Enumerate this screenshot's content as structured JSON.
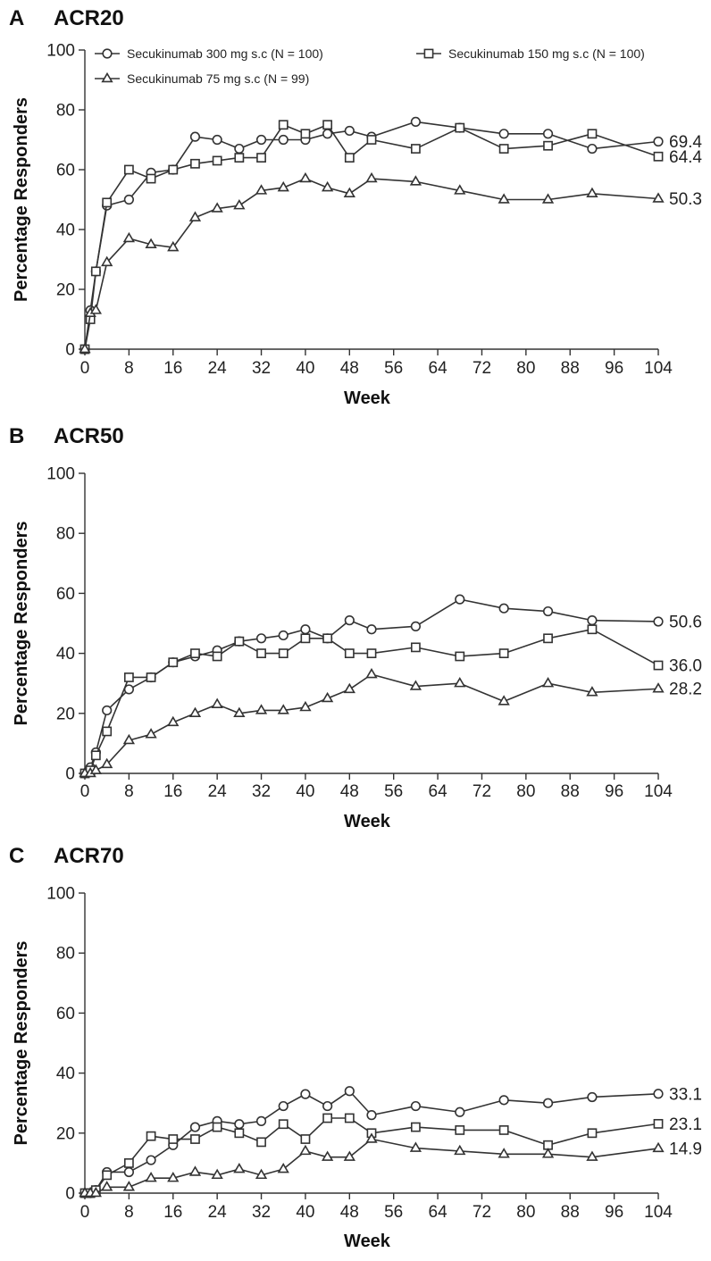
{
  "chart_data": [
    {
      "type": "line",
      "panel": "A",
      "title": "ACR20",
      "xlabel": "Week",
      "ylabel": "Percentage Responders",
      "xlim": [
        0,
        104
      ],
      "ylim": [
        0,
        100
      ],
      "xticks": [
        "0",
        "8",
        "16",
        "24",
        "32",
        "40",
        "48",
        "56",
        "64",
        "72",
        "80",
        "88",
        "96",
        "104"
      ],
      "yticks": [
        "0",
        "20",
        "40",
        "60",
        "80",
        "100"
      ],
      "grid": false,
      "legend": {
        "placement": "top",
        "entries": [
          {
            "label": "Secukinumab 300 mg s.c (N = 100)",
            "marker": "circle"
          },
          {
            "label": "Secukinumab 150 mg s.c (N = 100)",
            "marker": "square"
          },
          {
            "label": "Secukinumab 75 mg s.c (N = 99)",
            "marker": "triangle"
          }
        ]
      },
      "series": [
        {
          "name": "Secukinumab 300 mg s.c (N = 100)",
          "marker": "circle",
          "x": [
            0,
            1,
            2,
            4,
            8,
            12,
            16,
            20,
            24,
            28,
            32,
            36,
            40,
            44,
            48,
            52,
            60,
            68,
            76,
            84,
            92,
            104
          ],
          "y": [
            0,
            13,
            26,
            48,
            50,
            59,
            60,
            71,
            70,
            67,
            70,
            70,
            70,
            72,
            73,
            71,
            76,
            74,
            72,
            72,
            67,
            69.4
          ],
          "end_label": "69.4"
        },
        {
          "name": "Secukinumab 150 mg s.c (N = 100)",
          "marker": "square",
          "x": [
            0,
            1,
            2,
            4,
            8,
            12,
            16,
            20,
            24,
            28,
            32,
            36,
            40,
            44,
            48,
            52,
            60,
            68,
            76,
            84,
            92,
            104
          ],
          "y": [
            0,
            10,
            26,
            49,
            60,
            57,
            60,
            62,
            63,
            64,
            64,
            75,
            72,
            75,
            64,
            70,
            67,
            74,
            67,
            68,
            72,
            64.4
          ],
          "end_label": "64.4"
        },
        {
          "name": "Secukinumab 75 mg s.c (N = 99)",
          "marker": "triangle",
          "x": [
            0,
            1,
            2,
            4,
            8,
            12,
            16,
            20,
            24,
            28,
            32,
            36,
            40,
            44,
            48,
            52,
            60,
            68,
            76,
            84,
            92,
            104
          ],
          "y": [
            0,
            12,
            13,
            29,
            37,
            35,
            34,
            44,
            47,
            48,
            53,
            54,
            57,
            54,
            52,
            57,
            56,
            53,
            50,
            50,
            52,
            50.3
          ],
          "end_label": "50.3"
        }
      ]
    },
    {
      "type": "line",
      "panel": "B",
      "title": "ACR50",
      "xlabel": "Week",
      "ylabel": "Percentage Responders",
      "xlim": [
        0,
        104
      ],
      "ylim": [
        0,
        100
      ],
      "xticks": [
        "0",
        "8",
        "16",
        "24",
        "32",
        "40",
        "48",
        "56",
        "64",
        "72",
        "80",
        "88",
        "96",
        "104"
      ],
      "yticks": [
        "0",
        "20",
        "40",
        "60",
        "80",
        "100"
      ],
      "grid": false,
      "series": [
        {
          "name": "Secukinumab 300 mg s.c (N = 100)",
          "marker": "circle",
          "x": [
            0,
            1,
            2,
            4,
            8,
            12,
            16,
            20,
            24,
            28,
            32,
            36,
            40,
            44,
            48,
            52,
            60,
            68,
            76,
            84,
            92,
            104
          ],
          "y": [
            0,
            2,
            7,
            21,
            28,
            32,
            37,
            39,
            41,
            44,
            45,
            46,
            48,
            45,
            51,
            48,
            49,
            58,
            55,
            54,
            51,
            50.6
          ],
          "end_label": "50.6"
        },
        {
          "name": "Secukinumab 150 mg s.c (N = 100)",
          "marker": "square",
          "x": [
            0,
            1,
            2,
            4,
            8,
            12,
            16,
            20,
            24,
            28,
            32,
            36,
            40,
            44,
            48,
            52,
            60,
            68,
            76,
            84,
            92,
            104
          ],
          "y": [
            0,
            1,
            6,
            14,
            32,
            32,
            37,
            40,
            39,
            44,
            40,
            40,
            45,
            45,
            40,
            40,
            42,
            39,
            40,
            45,
            48,
            36.0
          ],
          "end_label": "36.0"
        },
        {
          "name": "Secukinumab 75 mg s.c (N = 99)",
          "marker": "triangle",
          "x": [
            0,
            1,
            2,
            4,
            8,
            12,
            16,
            20,
            24,
            28,
            32,
            36,
            40,
            44,
            48,
            52,
            60,
            68,
            76,
            84,
            92,
            104
          ],
          "y": [
            0,
            0,
            1,
            3,
            11,
            13,
            17,
            20,
            23,
            20,
            21,
            21,
            22,
            25,
            28,
            33,
            29,
            30,
            24,
            30,
            27,
            28.2
          ],
          "end_label": "28.2"
        }
      ]
    },
    {
      "type": "line",
      "panel": "C",
      "title": "ACR70",
      "xlabel": "Week",
      "ylabel": "Percentage Responders",
      "xlim": [
        0,
        104
      ],
      "ylim": [
        0,
        100
      ],
      "xticks": [
        "0",
        "8",
        "16",
        "24",
        "32",
        "40",
        "48",
        "56",
        "64",
        "72",
        "80",
        "88",
        "96",
        "104"
      ],
      "yticks": [
        "0",
        "20",
        "40",
        "60",
        "80",
        "100"
      ],
      "grid": false,
      "series": [
        {
          "name": "Secukinumab 300 mg s.c (N = 100)",
          "marker": "circle",
          "x": [
            0,
            1,
            2,
            4,
            8,
            12,
            16,
            20,
            24,
            28,
            32,
            36,
            40,
            44,
            48,
            52,
            60,
            68,
            76,
            84,
            92,
            104
          ],
          "y": [
            0,
            0,
            1,
            7,
            7,
            11,
            16,
            22,
            24,
            23,
            24,
            29,
            33,
            29,
            34,
            26,
            29,
            27,
            31,
            30,
            32,
            33.1
          ],
          "end_label": "33.1"
        },
        {
          "name": "Secukinumab 150 mg s.c (N = 100)",
          "marker": "square",
          "x": [
            0,
            1,
            2,
            4,
            8,
            12,
            16,
            20,
            24,
            28,
            32,
            36,
            40,
            44,
            48,
            52,
            60,
            68,
            76,
            84,
            92,
            104
          ],
          "y": [
            0,
            0,
            1,
            6,
            10,
            19,
            18,
            18,
            22,
            20,
            17,
            23,
            18,
            25,
            25,
            20,
            22,
            21,
            21,
            16,
            20,
            23.1
          ],
          "end_label": "23.1"
        },
        {
          "name": "Secukinumab 75 mg s.c (N = 99)",
          "marker": "triangle",
          "x": [
            0,
            1,
            2,
            4,
            8,
            12,
            16,
            20,
            24,
            28,
            32,
            36,
            40,
            44,
            48,
            52,
            60,
            68,
            76,
            84,
            92,
            104
          ],
          "y": [
            0,
            0,
            0,
            2,
            2,
            5,
            5,
            7,
            6,
            8,
            6,
            8,
            14,
            12,
            12,
            18,
            15,
            14,
            13,
            13,
            12,
            14.9
          ],
          "end_label": "14.9"
        }
      ]
    }
  ]
}
